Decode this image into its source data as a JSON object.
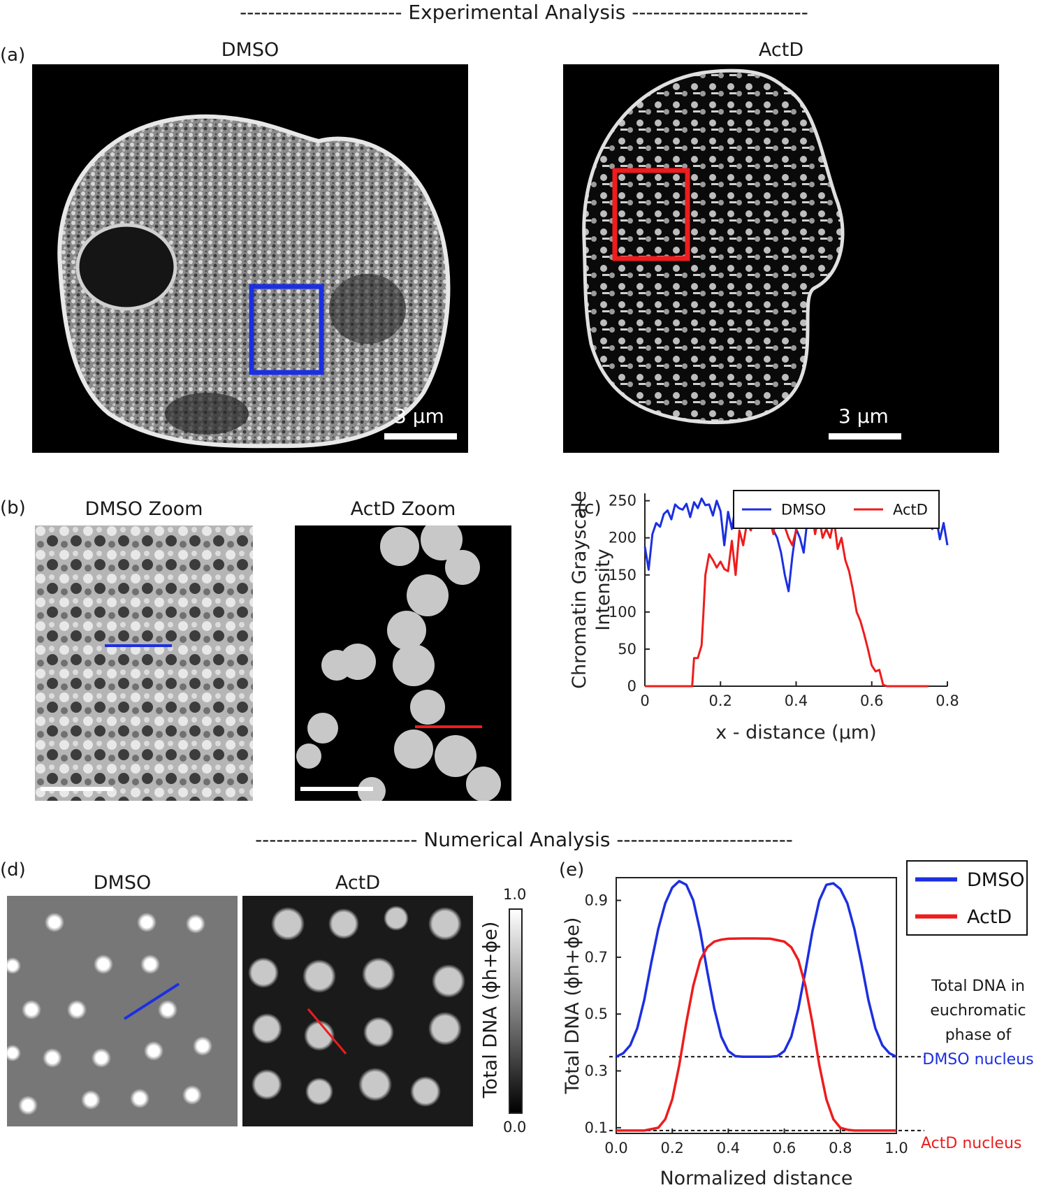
{
  "experimental": {
    "section_title": "----------------------- Experimental Analysis -------------------------",
    "panel_a": {
      "letter": "(a)",
      "dmso_title": "DMSO",
      "actd_title": "ActD",
      "scalebar": "3 µm"
    },
    "panel_b": {
      "letter": "(b)",
      "dmso_title": "DMSO Zoom",
      "actd_title": "ActD Zoom"
    },
    "panel_c": {
      "letter": "(c)"
    }
  },
  "numerical": {
    "section_title": "----------------------- Numerical Analysis -------------------------",
    "panel_d": {
      "letter": "(d)",
      "dmso_title": "DMSO",
      "actd_title": "ActD",
      "colorbar_max": "1.0",
      "colorbar_min": "0.0",
      "colorbar_label": "Total DNA (ϕh+ϕe)"
    },
    "panel_e": {
      "letter": "(e)",
      "annotation_lines": [
        "Total DNA in",
        "euchromatic",
        "phase of"
      ],
      "annotation_dmso": "DMSO nucleus",
      "annotation_actd": "ActD nucleus"
    }
  },
  "colors": {
    "dmso": "#1c2fe0",
    "actd": "#ee1c1c"
  },
  "chart_data": [
    {
      "type": "line",
      "panel": "(c)",
      "xlabel": "x - distance (µm)",
      "ylabel": "Chromatin Grayscale Intensity",
      "xlim": [
        0,
        0.8
      ],
      "ylim": [
        0,
        260
      ],
      "xticks": [
        "0",
        "0.2",
        "0.4",
        "0.6",
        "0.8"
      ],
      "yticks": [
        "0",
        "50",
        "100",
        "150",
        "200",
        "250"
      ],
      "legend_position": "top",
      "series": [
        {
          "name": "DMSO",
          "color": "#1c2fe0",
          "x": [
            0.0,
            0.01,
            0.02,
            0.03,
            0.04,
            0.05,
            0.06,
            0.07,
            0.08,
            0.09,
            0.1,
            0.11,
            0.12,
            0.13,
            0.14,
            0.15,
            0.16,
            0.17,
            0.18,
            0.19,
            0.2,
            0.21,
            0.22,
            0.23,
            0.24,
            0.25,
            0.26,
            0.27,
            0.28,
            0.29,
            0.3,
            0.31,
            0.32,
            0.33,
            0.34,
            0.35,
            0.36,
            0.37,
            0.38,
            0.39,
            0.4,
            0.41,
            0.42,
            0.43,
            0.44,
            0.45,
            0.46,
            0.47,
            0.48,
            0.49,
            0.5,
            0.51,
            0.52,
            0.53,
            0.54,
            0.55,
            0.56,
            0.57,
            0.58,
            0.59,
            0.6,
            0.61,
            0.62,
            0.63,
            0.64,
            0.65,
            0.66,
            0.67,
            0.68,
            0.69,
            0.7,
            0.71,
            0.72,
            0.73,
            0.74,
            0.75,
            0.76,
            0.77,
            0.78,
            0.79,
            0.8
          ],
          "y": [
            188,
            157,
            205,
            220,
            215,
            232,
            237,
            225,
            245,
            240,
            238,
            246,
            228,
            248,
            240,
            253,
            244,
            245,
            230,
            250,
            236,
            190,
            235,
            212,
            243,
            227,
            253,
            245,
            216,
            220,
            230,
            236,
            245,
            238,
            210,
            200,
            180,
            150,
            128,
            175,
            212,
            200,
            180,
            225,
            232,
            240,
            230,
            248,
            225,
            232,
            250,
            233,
            252,
            222,
            240,
            225,
            248,
            218,
            238,
            225,
            245,
            235,
            222,
            248,
            225,
            240,
            218,
            236,
            224,
            243,
            232,
            220,
            245,
            228,
            240,
            230,
            212,
            228,
            198,
            220,
            190
          ]
        },
        {
          "name": "ActD",
          "color": "#ee1c1c",
          "x": [
            0.0,
            0.02,
            0.04,
            0.06,
            0.08,
            0.1,
            0.12,
            0.125,
            0.13,
            0.14,
            0.15,
            0.155,
            0.16,
            0.17,
            0.18,
            0.19,
            0.2,
            0.21,
            0.22,
            0.23,
            0.24,
            0.25,
            0.26,
            0.27,
            0.28,
            0.29,
            0.3,
            0.31,
            0.32,
            0.33,
            0.34,
            0.35,
            0.36,
            0.37,
            0.38,
            0.39,
            0.4,
            0.41,
            0.42,
            0.43,
            0.44,
            0.45,
            0.46,
            0.47,
            0.48,
            0.49,
            0.5,
            0.51,
            0.52,
            0.53,
            0.54,
            0.55,
            0.56,
            0.57,
            0.58,
            0.59,
            0.6,
            0.61,
            0.62,
            0.63,
            0.64,
            0.645,
            0.65,
            0.66,
            0.68,
            0.7,
            0.72,
            0.74,
            0.75
          ],
          "y": [
            0,
            0,
            0,
            0,
            0,
            0,
            0,
            0,
            38,
            38,
            55,
            100,
            150,
            178,
            170,
            160,
            168,
            158,
            155,
            196,
            150,
            210,
            190,
            220,
            210,
            225,
            235,
            240,
            248,
            225,
            205,
            250,
            230,
            215,
            200,
            190,
            210,
            240,
            248,
            235,
            242,
            205,
            230,
            200,
            212,
            200,
            225,
            185,
            200,
            170,
            155,
            130,
            100,
            88,
            70,
            50,
            28,
            20,
            22,
            2,
            0,
            0,
            0,
            0,
            0,
            0,
            0,
            0,
            0
          ]
        }
      ]
    },
    {
      "type": "line",
      "panel": "(e)",
      "xlabel": "Normalized distance",
      "ylabel": "Total DNA (ϕh+ϕe)",
      "xlim": [
        0,
        1.0
      ],
      "ylim": [
        0.08,
        0.98
      ],
      "xticks": [
        "0.0",
        "0.2",
        "0.4",
        "0.6",
        "0.8",
        "1.0"
      ],
      "yticks": [
        "0.1",
        "0.3",
        "0.5",
        "0.7",
        "0.9"
      ],
      "legend_position": "top-right",
      "reference_lines": [
        0.35,
        0.09
      ],
      "series": [
        {
          "name": "DMSO",
          "color": "#1c2fe0",
          "x": [
            0.0,
            0.025,
            0.05,
            0.075,
            0.1,
            0.125,
            0.15,
            0.175,
            0.2,
            0.225,
            0.25,
            0.275,
            0.3,
            0.325,
            0.35,
            0.375,
            0.4,
            0.425,
            0.45,
            0.475,
            0.5,
            0.525,
            0.55,
            0.575,
            0.6,
            0.625,
            0.65,
            0.675,
            0.7,
            0.725,
            0.75,
            0.775,
            0.8,
            0.825,
            0.85,
            0.875,
            0.9,
            0.925,
            0.95,
            0.975,
            1.0
          ],
          "y": [
            0.35,
            0.362,
            0.39,
            0.45,
            0.55,
            0.68,
            0.8,
            0.89,
            0.945,
            0.968,
            0.955,
            0.9,
            0.79,
            0.65,
            0.52,
            0.42,
            0.37,
            0.352,
            0.35,
            0.35,
            0.35,
            0.35,
            0.35,
            0.352,
            0.37,
            0.42,
            0.52,
            0.65,
            0.79,
            0.9,
            0.955,
            0.96,
            0.94,
            0.89,
            0.8,
            0.68,
            0.55,
            0.45,
            0.39,
            0.362,
            0.35
          ]
        },
        {
          "name": "ActD",
          "color": "#ee1c1c",
          "x": [
            0.0,
            0.05,
            0.1,
            0.15,
            0.175,
            0.2,
            0.225,
            0.25,
            0.275,
            0.3,
            0.325,
            0.35,
            0.375,
            0.4,
            0.45,
            0.5,
            0.55,
            0.6,
            0.625,
            0.65,
            0.675,
            0.7,
            0.725,
            0.75,
            0.775,
            0.8,
            0.825,
            0.85,
            0.9,
            0.95,
            1.0
          ],
          "y": [
            0.09,
            0.09,
            0.09,
            0.1,
            0.13,
            0.2,
            0.32,
            0.47,
            0.6,
            0.69,
            0.735,
            0.755,
            0.762,
            0.765,
            0.766,
            0.766,
            0.765,
            0.755,
            0.735,
            0.69,
            0.6,
            0.47,
            0.32,
            0.2,
            0.13,
            0.1,
            0.093,
            0.09,
            0.09,
            0.09,
            0.09
          ]
        }
      ]
    }
  ]
}
